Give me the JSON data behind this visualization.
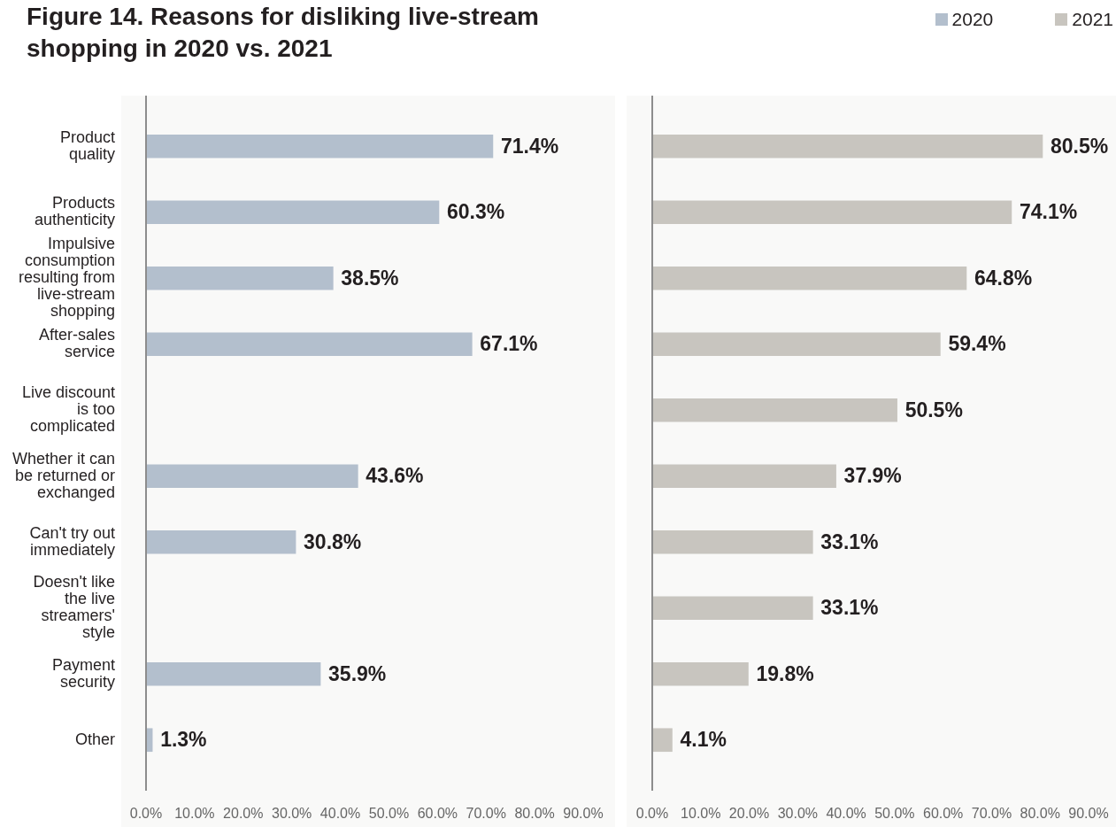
{
  "chart_data": [
    {
      "type": "bar",
      "orientation": "horizontal",
      "title": "Figure 14. Reasons for disliking live-stream shopping in 2020 vs. 2021",
      "categories": [
        "Product quality",
        "Products authenticity",
        "Impulsive consumption resulting from live-stream shopping",
        "After-sales service",
        "Live discount is too complicated",
        "Whether it can be returned or exchanged",
        "Can't try out immediately",
        "Doesn't like the live streamers' style",
        "Payment security",
        "Other"
      ],
      "series": [
        {
          "name": "2020",
          "color": "#b3bfcd",
          "values": [
            71.4,
            60.3,
            38.5,
            67.1,
            null,
            43.6,
            30.8,
            null,
            35.9,
            1.3
          ],
          "value_labels": [
            "71.4%",
            "60.3%",
            "38.5%",
            "67.1%",
            null,
            "43.6%",
            "30.8%",
            null,
            "35.9%",
            "1.3%"
          ]
        }
      ],
      "xlim": [
        0,
        90
      ],
      "xticks": [
        {
          "value": 0,
          "label": "0.0%"
        },
        {
          "value": 10,
          "label": "10.0%"
        },
        {
          "value": 20,
          "label": "20.0%"
        },
        {
          "value": 30,
          "label": "30.0%"
        },
        {
          "value": 40,
          "label": "40.0%"
        },
        {
          "value": 50,
          "label": "50.0%"
        },
        {
          "value": 60,
          "label": "60.0%"
        },
        {
          "value": 70,
          "label": "70.0%"
        },
        {
          "value": 80,
          "label": "80.0%"
        },
        {
          "value": 90,
          "label": "90.0%"
        }
      ],
      "legend": "top right"
    },
    {
      "type": "bar",
      "orientation": "horizontal",
      "categories": [
        null,
        null,
        null,
        null,
        null,
        null,
        null,
        null,
        null,
        null
      ],
      "series": [
        {
          "name": "2021",
          "color": "#c8c5bf",
          "values": [
            80.5,
            74.1,
            64.8,
            59.4,
            50.5,
            37.9,
            33.1,
            33.1,
            19.8,
            4.1
          ],
          "value_labels": [
            "80.5%",
            "74.1%",
            "64.8%",
            "59.4%",
            "50.5%",
            "37.9%",
            "33.1%",
            "33.1%",
            "19.8%",
            "4.1%"
          ]
        }
      ],
      "xlim": [
        0,
        90
      ],
      "xticks": [
        {
          "value": 0,
          "label": "0.0%"
        },
        {
          "value": 10,
          "label": "10.0%"
        },
        {
          "value": 20,
          "label": "20.0%"
        },
        {
          "value": 30,
          "label": "30.0%"
        },
        {
          "value": 40,
          "label": "40.0%"
        },
        {
          "value": 50,
          "label": "50.0%"
        },
        {
          "value": 60,
          "label": "60.0%"
        },
        {
          "value": 70,
          "label": "70.0%"
        },
        {
          "value": 80,
          "label": "80.0%"
        },
        {
          "value": 90,
          "label": "90.0%"
        }
      ],
      "tick_labels": "x",
      "legend": "top right"
    }
  ]
}
